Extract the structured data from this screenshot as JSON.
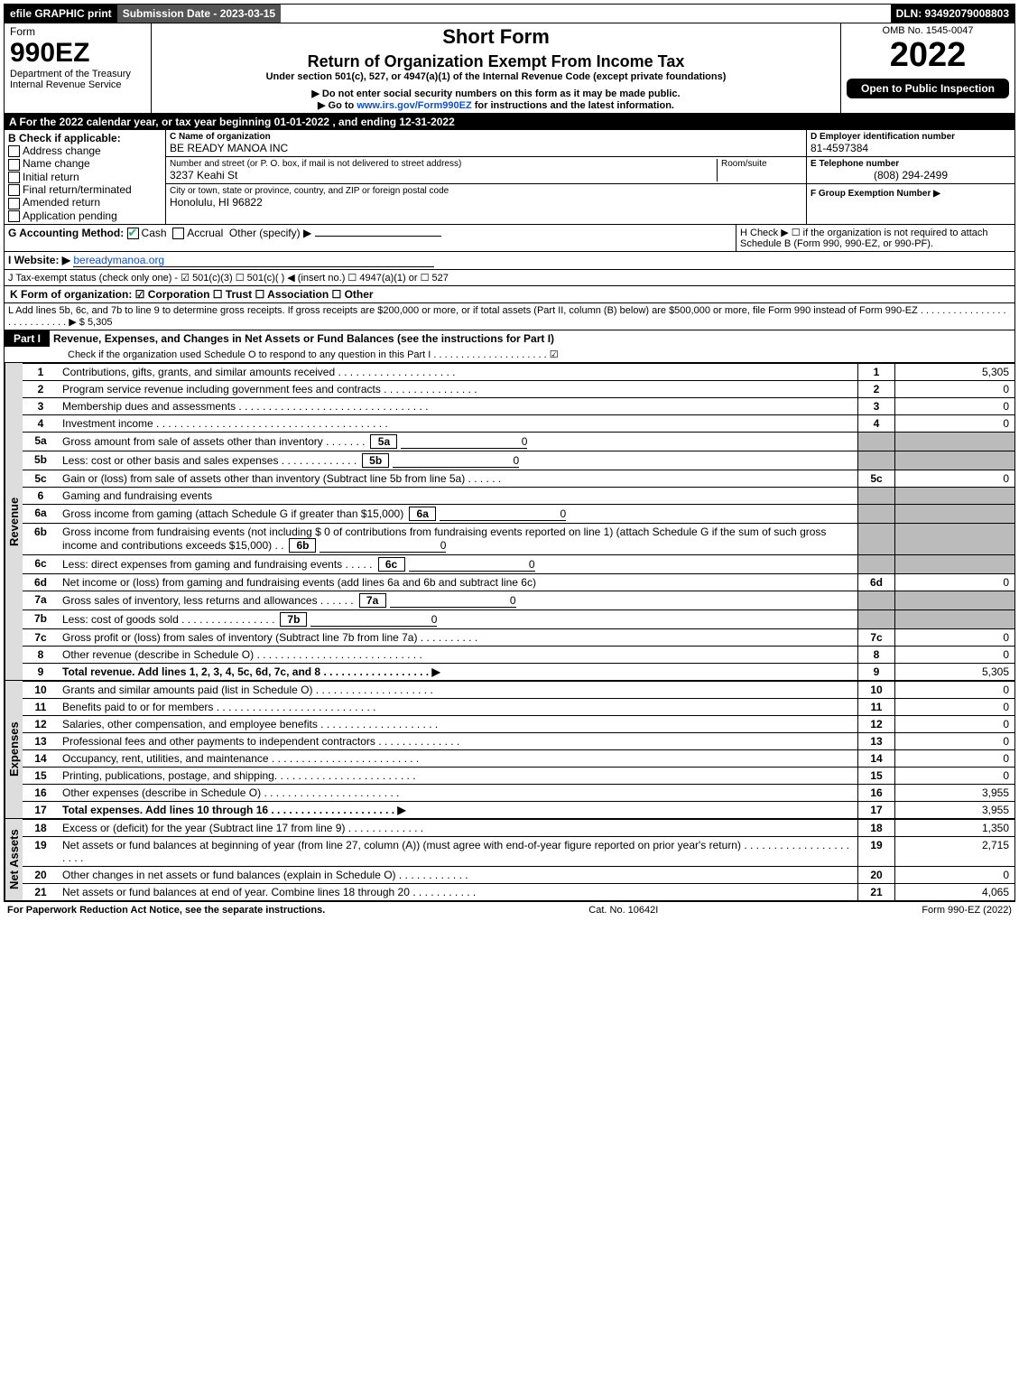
{
  "top": {
    "efile": "efile GRAPHIC print",
    "submission": "Submission Date - 2023-03-15",
    "dln": "DLN: 93492079008803"
  },
  "header": {
    "form_label": "Form",
    "form_num": "990EZ",
    "dept": "Department of the Treasury\nInternal Revenue Service",
    "title1": "Short Form",
    "title2": "Return of Organization Exempt From Income Tax",
    "subtitle": "Under section 501(c), 527, or 4947(a)(1) of the Internal Revenue Code (except private foundations)",
    "instr1": "▶ Do not enter social security numbers on this form as it may be made public.",
    "instr2_pre": "▶ Go to ",
    "instr2_link": "www.irs.gov/Form990EZ",
    "instr2_post": " for instructions and the latest information.",
    "omb": "OMB No. 1545-0047",
    "year": "2022",
    "open": "Open to Public Inspection"
  },
  "info": {
    "A": "A  For the 2022 calendar year, or tax year beginning 01-01-2022 , and ending 12-31-2022",
    "B_label": "B  Check if applicable:",
    "B_opts": [
      "Address change",
      "Name change",
      "Initial return",
      "Final return/terminated",
      "Amended return",
      "Application pending"
    ],
    "C_label": "C Name of organization",
    "C_name": "BE READY MANOA INC",
    "street_label": "Number and street (or P. O. box, if mail is not delivered to street address)",
    "street": "3237 Keahi St",
    "room_label": "Room/suite",
    "city_label": "City or town, state or province, country, and ZIP or foreign postal code",
    "city": "Honolulu, HI  96822",
    "D_label": "D Employer identification number",
    "D_val": "81-4597384",
    "E_label": "E Telephone number",
    "E_val": "(808) 294-2499",
    "F_label": "F Group Exemption Number  ▶",
    "G_label": "G Accounting Method:",
    "G_opts": [
      "Cash",
      "Accrual",
      "Other (specify) ▶"
    ],
    "H_label": "H  Check ▶  ☐  if the organization is not required to attach Schedule B (Form 990, 990-EZ, or 990-PF).",
    "I_label": "I Website: ▶",
    "I_val": "bereadymanoa.org",
    "J_label": "J Tax-exempt status (check only one) - ☑ 501(c)(3)  ☐ 501(c)(  ) ◀ (insert no.)  ☐ 4947(a)(1) or  ☐ 527",
    "K_label": "K Form of organization:  ☑ Corporation   ☐ Trust   ☐ Association   ☐ Other",
    "L_label": "L Add lines 5b, 6c, and 7b to line 9 to determine gross receipts. If gross receipts are $200,000 or more, or if total assets (Part II, column (B) below) are $500,000 or more, file Form 990 instead of Form 990-EZ  . . . . . . . . . . . . . . . . . . . . . . . . . . .  ▶ $ ",
    "L_val": "5,305"
  },
  "part1": {
    "label": "Part I",
    "title": "Revenue, Expenses, and Changes in Net Assets or Fund Balances (see the instructions for Part I)",
    "check": "Check if the organization used Schedule O to respond to any question in this Part I . . . . . . . . . . . . . . . . . . . . .  ☑"
  },
  "revenue_label": "Revenue",
  "expenses_label": "Expenses",
  "netassets_label": "Net Assets",
  "lines": {
    "1": {
      "desc": "Contributions, gifts, grants, and similar amounts received . . . . . . . . . . . . . . . . . . . .",
      "box": "1",
      "amt": "5,305"
    },
    "2": {
      "desc": "Program service revenue including government fees and contracts . . . . . . . . . . . . . . . .",
      "box": "2",
      "amt": "0"
    },
    "3": {
      "desc": "Membership dues and assessments . . . . . . . . . . . . . . . . . . . . . . . . . . . . . . . .",
      "box": "3",
      "amt": "0"
    },
    "4": {
      "desc": "Investment income . . . . . . . . . . . . . . . . . . . . . . . . . . . . . . . . . . . . . . .",
      "box": "4",
      "amt": "0"
    },
    "5a": {
      "desc": "Gross amount from sale of assets other than inventory . . . . . . .",
      "sub": "5a",
      "subamt": "0"
    },
    "5b": {
      "desc": "Less: cost or other basis and sales expenses . . . . . . . . . . . . .",
      "sub": "5b",
      "subamt": "0"
    },
    "5c": {
      "desc": "Gain or (loss) from sale of assets other than inventory (Subtract line 5b from line 5a) . . . . . .",
      "box": "5c",
      "amt": "0"
    },
    "6": {
      "desc": "Gaming and fundraising events"
    },
    "6a": {
      "desc": "Gross income from gaming (attach Schedule G if greater than $15,000)",
      "sub": "6a",
      "subamt": "0"
    },
    "6b": {
      "desc": "Gross income from fundraising events (not including $  0          of contributions from fundraising events reported on line 1) (attach Schedule G if the sum of such gross income and contributions exceeds $15,000)  . .",
      "sub": "6b",
      "subamt": "0"
    },
    "6c": {
      "desc": "Less: direct expenses from gaming and fundraising events  . . . . .",
      "sub": "6c",
      "subamt": "0"
    },
    "6d": {
      "desc": "Net income or (loss) from gaming and fundraising events (add lines 6a and 6b and subtract line 6c)",
      "box": "6d",
      "amt": "0"
    },
    "7a": {
      "desc": "Gross sales of inventory, less returns and allowances . . . . . .",
      "sub": "7a",
      "subamt": "0"
    },
    "7b": {
      "desc": "Less: cost of goods sold       . . . . . . . . . . . . . . . .",
      "sub": "7b",
      "subamt": "0"
    },
    "7c": {
      "desc": "Gross profit or (loss) from sales of inventory (Subtract line 7b from line 7a) . . . . . . . . . .",
      "box": "7c",
      "amt": "0"
    },
    "8": {
      "desc": "Other revenue (describe in Schedule O) . . . . . . . . . . . . . . . . . . . . . . . . . . . .",
      "box": "8",
      "amt": "0"
    },
    "9": {
      "desc": "Total revenue. Add lines 1, 2, 3, 4, 5c, 6d, 7c, and 8  . . . . . . . . . . . . . . . . . .    ▶",
      "box": "9",
      "amt": "5,305",
      "bold": true
    },
    "10": {
      "desc": "Grants and similar amounts paid (list in Schedule O) . . . . . . . . . . . . . . . . . . . .",
      "box": "10",
      "amt": "0"
    },
    "11": {
      "desc": "Benefits paid to or for members      . . . . . . . . . . . . . . . . . . . . . . . . . . .",
      "box": "11",
      "amt": "0"
    },
    "12": {
      "desc": "Salaries, other compensation, and employee benefits . . . . . . . . . . . . . . . . . . . .",
      "box": "12",
      "amt": "0"
    },
    "13": {
      "desc": "Professional fees and other payments to independent contractors . . . . . . . . . . . . . .",
      "box": "13",
      "amt": "0"
    },
    "14": {
      "desc": "Occupancy, rent, utilities, and maintenance . . . . . . . . . . . . . . . . . . . . . . . . .",
      "box": "14",
      "amt": "0"
    },
    "15": {
      "desc": "Printing, publications, postage, and shipping. . . . . . . . . . . . . . . . . . . . . . . .",
      "box": "15",
      "amt": "0"
    },
    "16": {
      "desc": "Other expenses (describe in Schedule O)     . . . . . . . . . . . . . . . . . . . . . . .",
      "box": "16",
      "amt": "3,955"
    },
    "17": {
      "desc": "Total expenses. Add lines 10 through 16     . . . . . . . . . . . . . . . . . . . . .   ▶",
      "box": "17",
      "amt": "3,955",
      "bold": true
    },
    "18": {
      "desc": "Excess or (deficit) for the year (Subtract line 17 from line 9)       . . . . . . . . . . . . .",
      "box": "18",
      "amt": "1,350"
    },
    "19": {
      "desc": "Net assets or fund balances at beginning of year (from line 27, column (A)) (must agree with end-of-year figure reported on prior year's return) . . . . . . . . . . . . . . . . . . . . . .",
      "box": "19",
      "amt": "2,715"
    },
    "20": {
      "desc": "Other changes in net assets or fund balances (explain in Schedule O) . . . . . . . . . . . .",
      "box": "20",
      "amt": "0"
    },
    "21": {
      "desc": "Net assets or fund balances at end of year. Combine lines 18 through 20 . . . . . . . . . . .",
      "box": "21",
      "amt": "4,065"
    }
  },
  "footer": {
    "left": "For Paperwork Reduction Act Notice, see the separate instructions.",
    "mid": "Cat. No. 10642I",
    "right": "Form 990-EZ (2022)"
  }
}
